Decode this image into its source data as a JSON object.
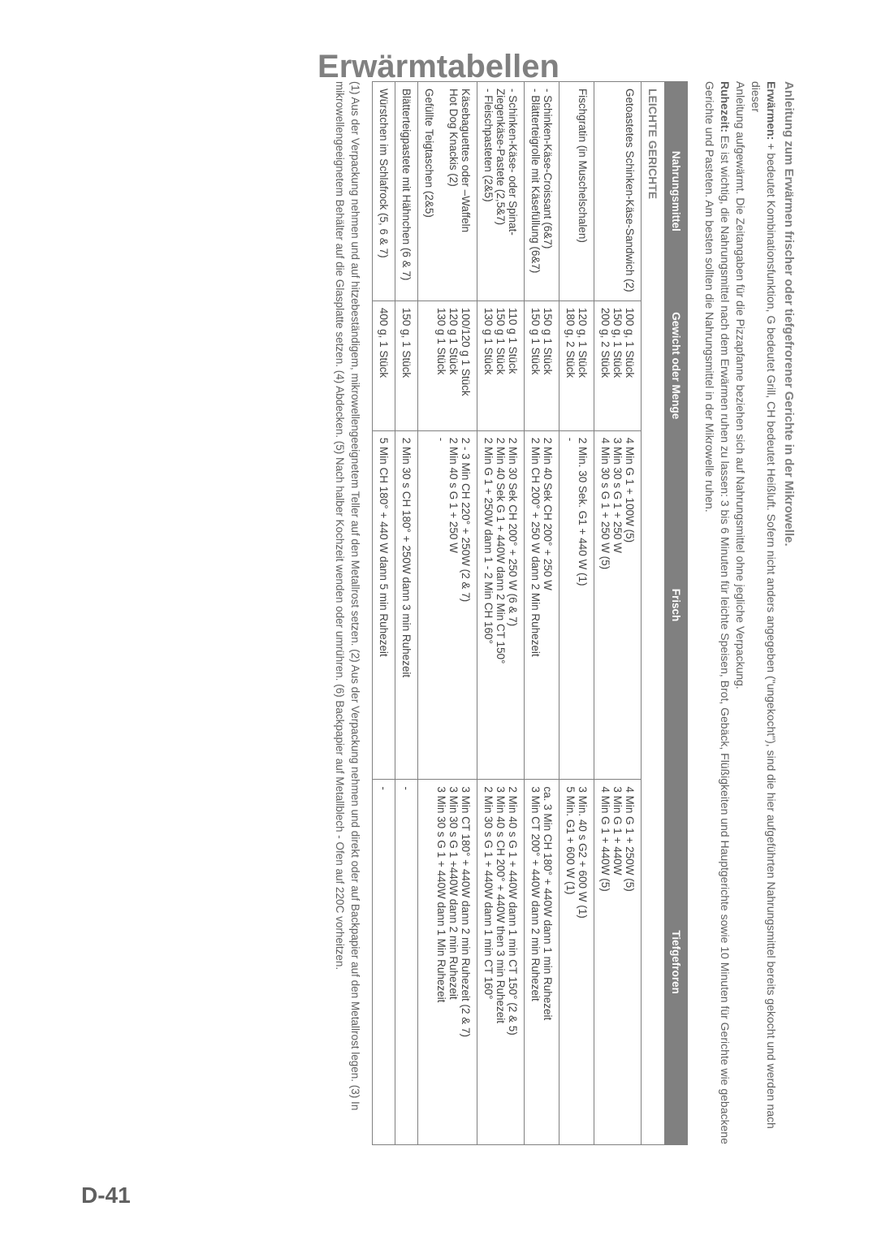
{
  "page": {
    "header": "Erwärmtabellen",
    "page_number": "D-41"
  },
  "intro": {
    "title": "Anleitung zum Erwärmen frischer oder tiefgefrorener Gerichte in der Mikrowelle.",
    "line1_label": "Erwärmen:",
    "line1_text": " + bedeutet Kombinationsfunktion, G bedeutet Grill, CH bedeutet Heißluft. Sofern nicht anders angegeben (\"ungekocht\"), sind die hier aufgeführten Nahrungsmittel bereits gekocht und werden nach dieser",
    "line2": "Anleitung aufgewärmt. Die Zeitangaben für die Pizzapfanne beziehen sich auf Nahrungsmittel ohne jegliche Verpackung.",
    "line3_label": "Ruhezeit:",
    "line3_text": " Es ist wichtig, die Nahrungsmittel nach dem Erwärmen ruhen zu lassen: 3 bis 6 Minuten für leichte Speisen, Brot, Gebäck, Flüßigkeiten und Hauptgerichte sowie 10 Minuten für Gerichte wie gebackene Gerichte und Pasteten. Am besten sollten die Nahrungsmittel in der Mikrowelle ruhen."
  },
  "table": {
    "columns": [
      "Nahrungsmittel",
      "Gewicht oder Menge",
      "Frisch",
      "Tiefgefroren"
    ],
    "section_label": "LEICHTE GERICHTE",
    "rows": [
      {
        "c0": "Getoastetes Schinken-Käse-Sandwich (2)",
        "c1": "100 g, 1 Stück\n150 g, 1 Stück\n200 g, 2 Stück",
        "c2": "4 Min G 1 + 100W (5)\n3 Min 30 s G 1 + 250 W\n4 Min 30 s G 1 + 250 W (5)",
        "c3": "4 Min G 1 + 250W (5)\n3 Min G 1 + 440W\n4 Min G 1 + 440W (5)"
      },
      {
        "c0": "Fischgratin (in Muschelschalen)",
        "c1": "120 g, 1 Stück\n180 g, 2 Stück",
        "c2": "2 Min. 30 Sek. G1 + 440 W (1)\n-",
        "c3": "3 Min. 40 s G2 + 600 W (1)\n5 Min. G1 + 600 W (1)"
      },
      {
        "c0": "- Schinken-Käse-Croissant (6&7)\n- Blätterteigrolle mit Käsefüllung (6&7)",
        "c1": "150 g 1 Stück\n150 g 1 Stück",
        "c2": "2 Min 40 Sek CH 200° + 250 W\n2 Min CH 200° + 250 W dann 2 Min Ruhezeit",
        "c3": "ca. 3 Min CH 180° + 440W dann 1 min Ruhezeit\n3 Min CT 200° + 440W dann 2 min Ruhezeit"
      },
      {
        "c0": "- Schinken-Käse- oder Spinat-Ziegenkäse-Pastete (2,5&7)\n- Fleischpasteten (2&5)",
        "c1": "110 g 1 Stück\n150 g 1 Stück\n130 g 1 Stück",
        "c2": "2 Min 30 Sek CH 200° + 250 W (6 & 7)\n2 Min 40 Sek G 1 + 440W dann 2 Min CT 150°\n2 Min G 1 + 250W dann 1 - 2 Min CH 160°",
        "c3": "2 Min 40 s G 1 + 440W dann 1 min CT 150° (2 & 5)\n3 Min 40 s CH 200° + 440W then 3 min Ruhezeit\n2 Min 30 s G 1 + 440W dann 1 min CT 160°"
      },
      {
        "c0": "Käsebaguettes oder –Waffeln\nHot Dog Knackis (2)\n\nGefüllte Teigtaschen (2&5)",
        "c1": "100/120 g 1 Stück\n120 g 1 Stück\n130 g 1 Stück",
        "c2": "2 - 3 Min CH 220° + 250W (2 & 7)\n2 Min 40 s G 1 + 250 W\n-",
        "c3": "3 Min CT 180° + 440W dann 2 min Ruhezeit (2 & 7)\n3 Min 30 s G 1 +440W dann 2 min Ruhezeit\n3 Min 30 s G 1 + 440W dann 1 Min Ruhezeit"
      },
      {
        "c0": "Blätterteigpastete mit Hähnchen (6 & 7)",
        "c1": "150 g, 1 Stück",
        "c2": "2 Min 30 s CH 180° + 250W dann 3 min Ruhezeit",
        "c3": "-"
      },
      {
        "c0": "Würstchen im Schlafrock  (5, 6 & 7)",
        "c1": "400 g, 1 Stück",
        "c2": "5 Min CH 180° + 440 W dann 5 min Ruhezeit",
        "c3": "-"
      }
    ]
  },
  "footnotes": "(1) Aus der Verpackung nehmen und auf hitzebeständigem, mikrowellengeeignetem Teller auf den Metallrost setzen. (2) Aus der Verpackung nehmen und direkt oder auf Backpapier auf den Metallrost legen. (3) In mikrowellengeeignetem Behälter auf die Glasplatte setzen.  (4) Abdecken. (5) Nach halber Kochzeit wenden oder umrühren. (6) Backpapier auf Metallblech - Ofen auf 220C vorheitzen."
}
